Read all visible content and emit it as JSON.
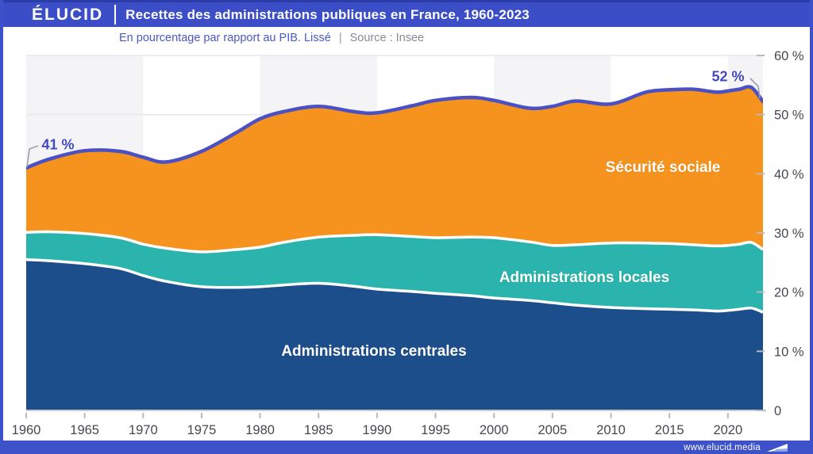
{
  "header": {
    "brand": "ÉLUCID",
    "title": "Recettes des administrations publiques en France, 1960-2023"
  },
  "subtitle": {
    "text": "En pourcentage par rapport au PIB. Lissé",
    "separator": "|",
    "source": "Source : Insee"
  },
  "footer": {
    "url": "www.elucid.media",
    "logo_icon": "elucid-flag-icon"
  },
  "colors": {
    "frame_blue": "#3D51C9",
    "header_blue": "#3B4EC7",
    "top_line_purple": "#4B50C3",
    "annotation_text": "#4349BD",
    "area_centrales": "#1D4E8C",
    "area_locales": "#2BB3AD",
    "area_sociale": "#F6921E",
    "separator_white": "#FFFFFF",
    "decade_band": "#F4F4F7",
    "gridline": "#E7E7EB",
    "baseline": "#CBCCD1",
    "tick": "#B9BAC0",
    "axis_text": "#45484E",
    "leader_line": "#9AA0A8"
  },
  "chart_data": {
    "type": "area",
    "stacked": true,
    "title": "Recettes des administrations publiques en France, 1960-2023",
    "unit": "% du PIB",
    "xlim": [
      1960,
      2023
    ],
    "ylim": [
      0,
      60
    ],
    "grid": "horizontal",
    "shaded_decades": [
      [
        1960,
        1970
      ],
      [
        1980,
        1990
      ],
      [
        2000,
        2010
      ],
      [
        2020,
        2023
      ]
    ],
    "x": [
      1960,
      1962,
      1965,
      1968,
      1970,
      1972,
      1975,
      1978,
      1980,
      1982,
      1985,
      1988,
      1990,
      1993,
      1995,
      1998,
      2000,
      2003,
      2005,
      2007,
      2010,
      2013,
      2015,
      2017,
      2019,
      2020,
      2021,
      2022,
      2023
    ],
    "series": [
      {
        "name": "Administrations centrales",
        "color": "#1D4E8C",
        "values": [
          25.5,
          25.3,
          24.8,
          24.0,
          22.8,
          21.8,
          20.9,
          20.8,
          20.9,
          21.2,
          21.5,
          21.0,
          20.5,
          20.1,
          19.8,
          19.4,
          19.0,
          18.6,
          18.2,
          17.8,
          17.4,
          17.2,
          17.1,
          17.0,
          16.8,
          16.9,
          17.1,
          17.3,
          16.6
        ]
      },
      {
        "name": "Administrations locales",
        "color": "#2BB3AD",
        "values": [
          4.6,
          4.9,
          5.1,
          5.2,
          5.3,
          5.6,
          5.9,
          6.4,
          6.7,
          7.2,
          7.8,
          8.6,
          9.2,
          9.3,
          9.4,
          9.9,
          10.2,
          9.9,
          9.7,
          10.2,
          10.9,
          11.1,
          11.1,
          11.0,
          11.0,
          11.0,
          11.0,
          11.1,
          10.6
        ]
      },
      {
        "name": "Sécurité sociale",
        "color": "#F6921E",
        "values": [
          10.9,
          12.3,
          14.0,
          14.6,
          14.7,
          14.6,
          17.0,
          19.8,
          21.7,
          22.1,
          22.1,
          20.9,
          20.6,
          22.1,
          23.2,
          23.6,
          23.2,
          22.6,
          23.5,
          24.3,
          23.5,
          25.5,
          26.0,
          26.3,
          26.0,
          26.1,
          26.2,
          26.2,
          25.0
        ]
      }
    ],
    "totals_annotated": {
      "1960": 41,
      "2023": 52
    },
    "x_ticks": [
      "1960",
      "1965",
      "1970",
      "1975",
      "1980",
      "1985",
      "1990",
      "1995",
      "2000",
      "2005",
      "2010",
      "2015",
      "2020"
    ],
    "y_ticks": [
      "0",
      "10 %",
      "20 %",
      "30 %",
      "40 %",
      "50 %",
      "60 %"
    ],
    "annotations": [
      {
        "id": "start",
        "text": "41 %",
        "leader": [
          [
            44,
            122
          ],
          [
            33,
            126
          ],
          [
            30,
            149
          ]
        ]
      },
      {
        "id": "end",
        "text": "52 %",
        "leader": [
          [
            941,
            37
          ],
          [
            951,
            47
          ],
          [
            953,
            62
          ]
        ]
      }
    ]
  }
}
